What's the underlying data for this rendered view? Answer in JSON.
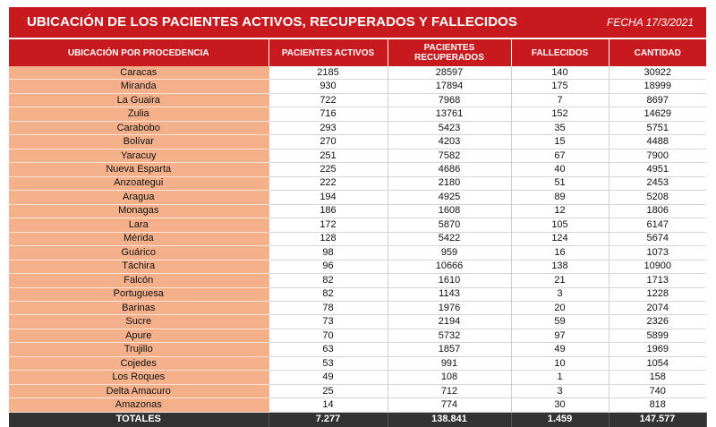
{
  "header": {
    "title": "UBICACIÓN DE LOS PACIENTES ACTIVOS, RECUPERADOS Y FALLECIDOS",
    "date": "FECHA 17/3/2021"
  },
  "columns": [
    "UBICACIÓN POR PROCEDENCIA",
    "PACIENTES ACTIVOS",
    "PACIENTES RECUPERADOS",
    "FALLECIDOS",
    "CANTIDAD"
  ],
  "rows": [
    [
      "Caracas",
      "2185",
      "28597",
      "140",
      "30922"
    ],
    [
      "Miranda",
      "930",
      "17894",
      "175",
      "18999"
    ],
    [
      "La Guaira",
      "722",
      "7968",
      "7",
      "8697"
    ],
    [
      "Zulia",
      "716",
      "13761",
      "152",
      "14629"
    ],
    [
      "Carabobo",
      "293",
      "5423",
      "35",
      "5751"
    ],
    [
      "Bolívar",
      "270",
      "4203",
      "15",
      "4488"
    ],
    [
      "Yaracuy",
      "251",
      "7582",
      "67",
      "7900"
    ],
    [
      "Nueva Esparta",
      "225",
      "4686",
      "40",
      "4951"
    ],
    [
      "Anzoategui",
      "222",
      "2180",
      "51",
      "2453"
    ],
    [
      "Aragua",
      "194",
      "4925",
      "89",
      "5208"
    ],
    [
      "Monagas",
      "186",
      "1608",
      "12",
      "1806"
    ],
    [
      "Lara",
      "172",
      "5870",
      "105",
      "6147"
    ],
    [
      "Mérida",
      "128",
      "5422",
      "124",
      "5674"
    ],
    [
      "Guárico",
      "98",
      "959",
      "16",
      "1073"
    ],
    [
      "Táchira",
      "96",
      "10666",
      "138",
      "10900"
    ],
    [
      "Falcón",
      "82",
      "1610",
      "21",
      "1713"
    ],
    [
      "Portuguesa",
      "82",
      "1143",
      "3",
      "1228"
    ],
    [
      "Barinas",
      "78",
      "1976",
      "20",
      "2074"
    ],
    [
      "Sucre",
      "73",
      "2194",
      "59",
      "2326"
    ],
    [
      "Apure",
      "70",
      "5732",
      "97",
      "5899"
    ],
    [
      "Trujillo",
      "63",
      "1857",
      "49",
      "1969"
    ],
    [
      "Cojedes",
      "53",
      "991",
      "10",
      "1054"
    ],
    [
      "Los Roques",
      "49",
      "108",
      "1",
      "158"
    ],
    [
      "Delta Amacuro",
      "25",
      "712",
      "3",
      "740"
    ],
    [
      "Amazonas",
      "14",
      "774",
      "30",
      "818"
    ]
  ],
  "totals": [
    "TOTALES",
    "7.277",
    "138.841",
    "1.459",
    "147.577"
  ]
}
